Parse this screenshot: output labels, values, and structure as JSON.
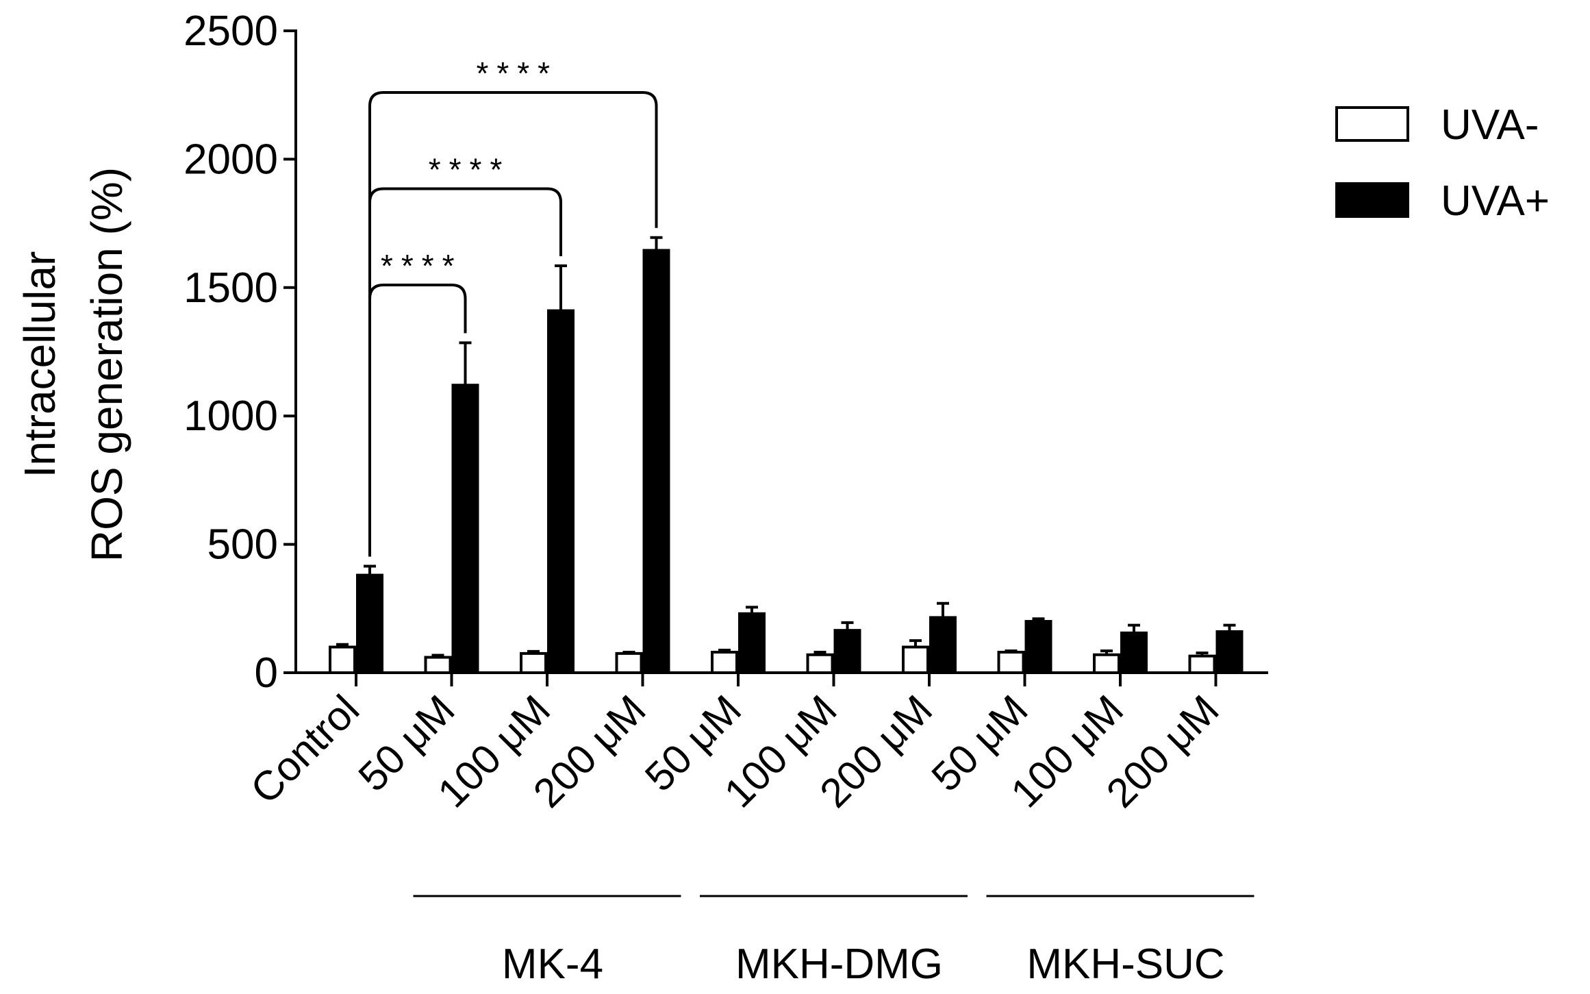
{
  "chart_data": {
    "type": "bar",
    "ylabel": [
      "Intracellular",
      "ROS generation (%)"
    ],
    "ylim": [
      0,
      2500
    ],
    "yticks": [
      0,
      500,
      1000,
      1500,
      2000,
      2500
    ],
    "categories": [
      "Control",
      "50 μM",
      "100 μM",
      "200 μM",
      "50 μM",
      "100 μM",
      "200 μM",
      "50 μM",
      "100 μM",
      "200 μM"
    ],
    "groups": [
      {
        "label": "MK-4",
        "from": 1,
        "to": 3
      },
      {
        "label": "MKH-DMG",
        "from": 4,
        "to": 6
      },
      {
        "label": "MKH-SUC",
        "from": 7,
        "to": 9
      }
    ],
    "series": [
      {
        "name": "UVA-",
        "color": "#ffffff",
        "values": [
          100,
          60,
          75,
          75,
          80,
          70,
          100,
          80,
          70,
          65
        ],
        "errors": [
          10,
          8,
          8,
          5,
          8,
          10,
          25,
          5,
          15,
          12
        ]
      },
      {
        "name": "UVA+",
        "color": "#000000",
        "values": [
          380,
          1120,
          1410,
          1645,
          230,
          165,
          215,
          200,
          155,
          160
        ],
        "errors": [
          35,
          165,
          175,
          50,
          25,
          30,
          55,
          10,
          30,
          25
        ]
      }
    ],
    "significance": [
      {
        "from": 0,
        "to": 1,
        "label": "****"
      },
      {
        "from": 0,
        "to": 2,
        "label": "****"
      },
      {
        "from": 0,
        "to": 3,
        "label": "****"
      }
    ],
    "legend_position": "top-right",
    "grid": false
  }
}
